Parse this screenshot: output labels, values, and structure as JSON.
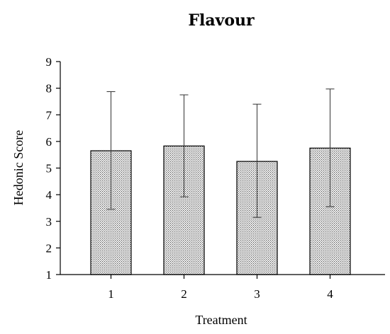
{
  "chart_data": {
    "type": "bar",
    "title": "Flavour",
    "xlabel": "Treatment",
    "ylabel": "Hedonic Score",
    "categories": [
      "1",
      "2",
      "3",
      "4"
    ],
    "series": [
      {
        "values": [
          5.65,
          5.83,
          5.25,
          5.75
        ],
        "error_upper": [
          7.87,
          7.75,
          7.4,
          7.97
        ],
        "error_lower": [
          3.45,
          3.92,
          3.15,
          3.55
        ]
      }
    ],
    "ylim": [
      1,
      9
    ],
    "yticks": [
      "1",
      "2",
      "3",
      "4",
      "5",
      "6",
      "7",
      "8",
      "9"
    ],
    "grid": false,
    "bar_fill": "stippled gray",
    "bar_stroke": "#000000"
  }
}
